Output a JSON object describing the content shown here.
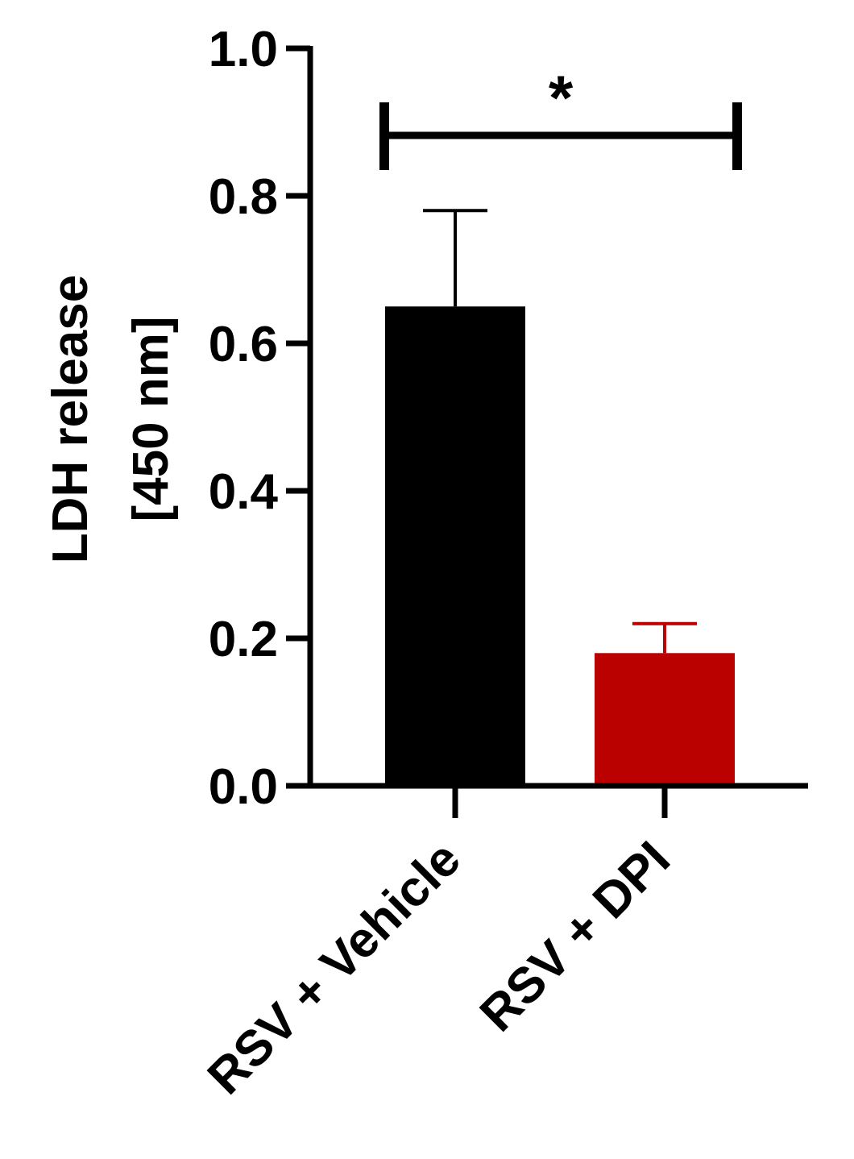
{
  "chart_data": {
    "type": "bar",
    "title": "",
    "xlabel": "",
    "ylabel": [
      "LDH release",
      "[450 nm]"
    ],
    "categories": [
      "RSV + Vehicle",
      "RSV + DPI"
    ],
    "values": [
      0.65,
      0.18
    ],
    "errors": [
      0.13,
      0.04
    ],
    "bar_colors": [
      "#000000",
      "#bb0000"
    ],
    "ylim": [
      0,
      1.0
    ],
    "yticks": [
      0.0,
      0.2,
      0.4,
      0.6,
      0.8,
      1.0
    ],
    "ytick_labels": [
      "0.0",
      "0.2",
      "0.4",
      "0.6",
      "0.8",
      "1.0"
    ],
    "grid": false,
    "significance": {
      "from": "RSV + Vehicle",
      "to": "RSV + DPI",
      "label": "*"
    }
  }
}
